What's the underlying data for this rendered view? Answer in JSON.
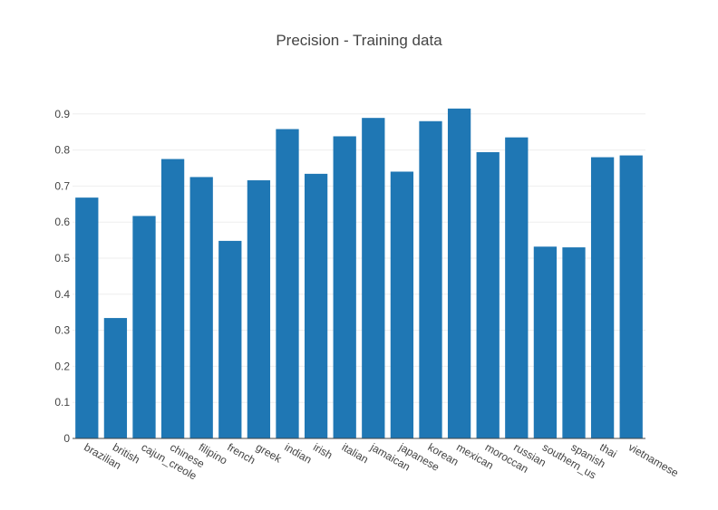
{
  "chart_data": {
    "type": "bar",
    "title": "Precision - Training data",
    "xlabel": "",
    "ylabel": "",
    "categories": [
      "brazilian",
      "british",
      "cajun_creole",
      "chinese",
      "filipino",
      "french",
      "greek",
      "indian",
      "irish",
      "italian",
      "jamaican",
      "japanese",
      "korean",
      "mexican",
      "moroccan",
      "russian",
      "southern_us",
      "spanish",
      "thai",
      "vietnamese"
    ],
    "values": [
      0.668,
      0.334,
      0.617,
      0.775,
      0.725,
      0.548,
      0.716,
      0.858,
      0.734,
      0.838,
      0.889,
      0.74,
      0.88,
      0.915,
      0.794,
      0.835,
      0.532,
      0.53,
      0.78,
      0.785
    ],
    "ylim": [
      0,
      0.95
    ],
    "yticks": [
      "0",
      "0.1",
      "0.2",
      "0.3",
      "0.4",
      "0.5",
      "0.6",
      "0.7",
      "0.8",
      "0.9"
    ],
    "grid": true,
    "bar_color": "#1f77b4"
  }
}
